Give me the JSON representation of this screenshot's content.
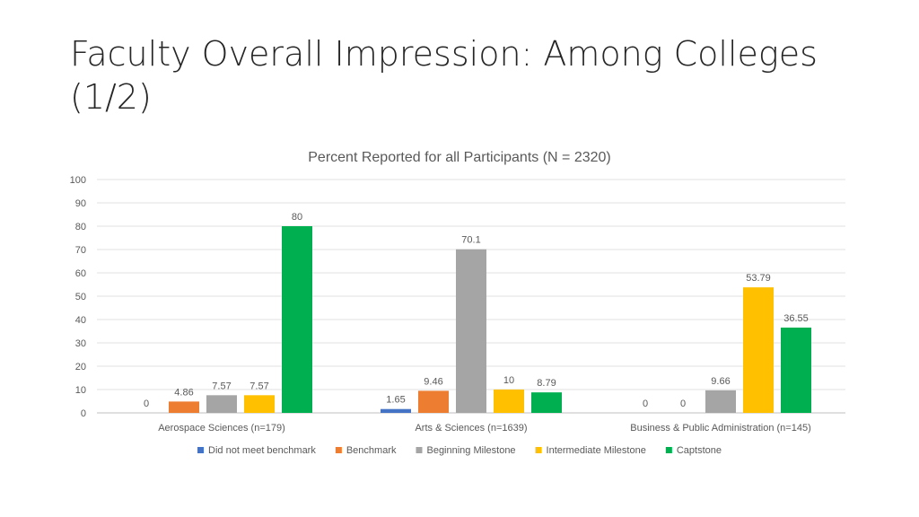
{
  "slide": {
    "title_line1": "Faculty Overall Impression: Among Colleges",
    "title_line2": "(1/2)"
  },
  "chart_data": {
    "type": "bar",
    "title": "Percent Reported for all Participants (N = 2320)",
    "xlabel": "",
    "ylabel": "",
    "ylim": [
      0,
      100
    ],
    "yticks": [
      0,
      10,
      20,
      30,
      40,
      50,
      60,
      70,
      80,
      90,
      100
    ],
    "grid": true,
    "legend_position": "bottom",
    "categories": [
      "Aerospace Sciences (n=179)",
      "Arts & Sciences (n=1639)",
      "Business & Public Administration (n=145)"
    ],
    "series": [
      {
        "name": "Did not meet benchmark",
        "color": "#4472C4",
        "values": [
          0,
          1.65,
          0
        ]
      },
      {
        "name": "Benchmark",
        "color": "#ED7D31",
        "values": [
          4.86,
          9.46,
          0
        ]
      },
      {
        "name": "Beginning Milestone",
        "color": "#A5A5A5",
        "values": [
          7.57,
          70.1,
          9.66
        ]
      },
      {
        "name": "Intermediate Milestone",
        "color": "#FFC000",
        "values": [
          7.57,
          10,
          53.79
        ]
      },
      {
        "name": "Captstone",
        "color": "#00B050",
        "values": [
          80,
          8.79,
          36.55
        ]
      }
    ]
  }
}
